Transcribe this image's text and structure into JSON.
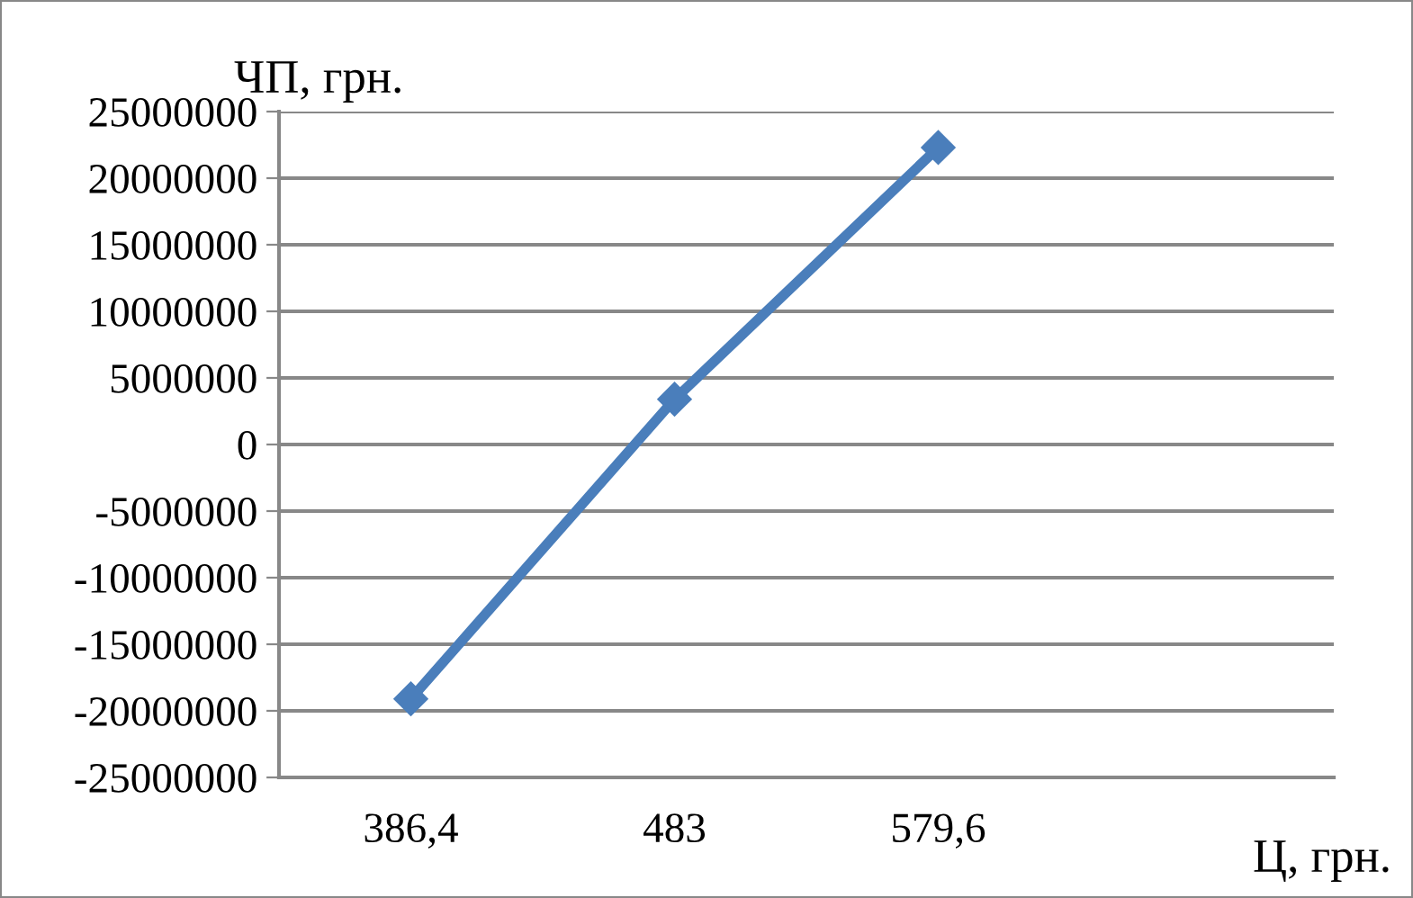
{
  "chart_data": {
    "type": "line",
    "xlabel": "Ц, грн.",
    "ylabel": "ЧП, грн.",
    "categories": [
      "386,4",
      "483",
      "579,6",
      null
    ],
    "series": [
      {
        "color": "#4a7ebb",
        "values": [
          -19100000,
          3400000,
          22300000,
          null
        ]
      }
    ],
    "ylim": [
      -25000000,
      25000000
    ],
    "yticks": [
      -25000000,
      -20000000,
      -15000000,
      -10000000,
      -5000000,
      0,
      5000000,
      10000000,
      15000000,
      20000000,
      25000000
    ],
    "grid": "y",
    "legend": false,
    "marker": "diamond",
    "line_style": "solid"
  }
}
